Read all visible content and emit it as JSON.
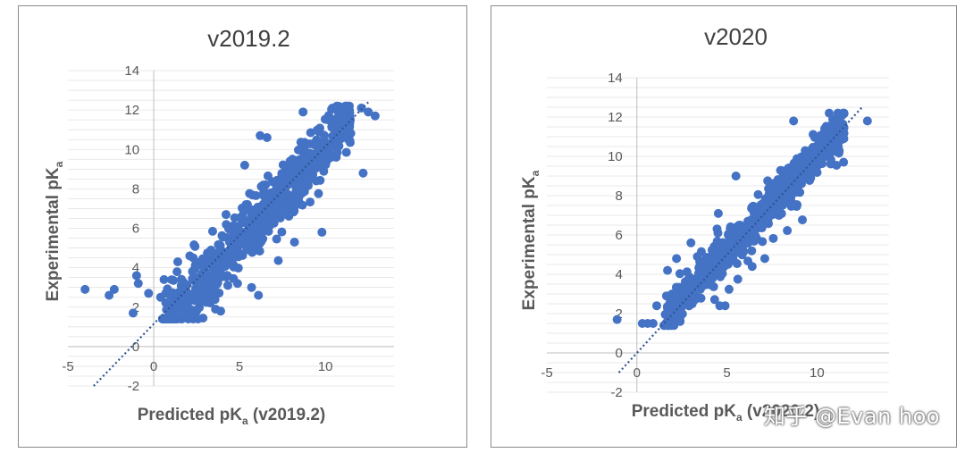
{
  "watermark": "知乎 @Evan hoo",
  "chart_data": [
    {
      "type": "scatter",
      "title": "v2019.2",
      "ylabel": "Experimental pK",
      "ylabel_sub": "a",
      "xlabel": "Predicted pK",
      "xlabel_sub": "a",
      "xlabel_suffix": " (v2019.2)",
      "xlim": [
        -5,
        14
      ],
      "ylim": [
        -2,
        14
      ],
      "x_ticks": [
        -5,
        0,
        5,
        10
      ],
      "y_ticks": [
        -2,
        0,
        2,
        4,
        6,
        8,
        10,
        12,
        14
      ],
      "minor_grid_step": 0.5,
      "trendline": {
        "x": [
          -3.5,
          12.5
        ],
        "y": [
          -2,
          12.4
        ]
      },
      "marker_color": "#4472c4",
      "cloud": {
        "seed": 7,
        "n": 700,
        "x_range": [
          0.5,
          11.5
        ],
        "slope": 0.96,
        "intercept": 0.5,
        "sd_core": 0.7,
        "sd_tail": 1.4
      },
      "points": [
        [
          -4,
          2.9
        ],
        [
          -2.6,
          2.6
        ],
        [
          -2.3,
          2.9
        ],
        [
          -1.2,
          1.7
        ],
        [
          -1.0,
          3.6
        ],
        [
          -0.9,
          3.2
        ],
        [
          -0.3,
          2.7
        ],
        [
          0.4,
          2.5
        ],
        [
          0.7,
          2.7
        ],
        [
          1.1,
          2.6
        ],
        [
          1.5,
          2.4
        ],
        [
          1.6,
          3.1
        ],
        [
          0.6,
          3.4
        ],
        [
          0.9,
          1.8
        ],
        [
          1.4,
          4.3
        ],
        [
          2.1,
          4.6
        ],
        [
          2.3,
          4.5
        ],
        [
          5.3,
          9.2
        ],
        [
          6.2,
          10.7
        ],
        [
          6.6,
          10.6
        ],
        [
          8.7,
          11.9
        ],
        [
          11.0,
          12.1
        ],
        [
          11.4,
          12.0
        ],
        [
          12.1,
          12.1
        ],
        [
          12.5,
          11.9
        ],
        [
          12.9,
          11.7
        ],
        [
          12.2,
          8.8
        ],
        [
          9.8,
          5.8
        ],
        [
          8.2,
          5.3
        ],
        [
          6.1,
          2.6
        ],
        [
          5.7,
          3.0
        ],
        [
          3.6,
          1.9
        ],
        [
          3.9,
          1.8
        ],
        [
          2.5,
          1.8
        ]
      ]
    },
    {
      "type": "scatter",
      "title": "v2020",
      "ylabel": "Experimental pK",
      "ylabel_sub": "a",
      "xlabel": "Predicted pK",
      "xlabel_sub": "a",
      "xlabel_suffix": " (v2020.2)",
      "xlim": [
        -5,
        14
      ],
      "ylim": [
        -2,
        14
      ],
      "x_ticks": [
        -5,
        0,
        5,
        10
      ],
      "y_ticks": [
        -2,
        0,
        2,
        4,
        6,
        8,
        10,
        12,
        14
      ],
      "minor_grid_step": 0.5,
      "trendline": {
        "x": [
          -1.0,
          12.5
        ],
        "y": [
          -1.0,
          12.5
        ]
      },
      "marker_color": "#4472c4",
      "cloud": {
        "seed": 11,
        "n": 700,
        "x_range": [
          1.5,
          11.5
        ],
        "slope": 0.98,
        "intercept": 0.3,
        "sd_core": 0.45,
        "sd_tail": 0.9
      },
      "points": [
        [
          -1.1,
          1.7
        ],
        [
          0.3,
          1.5
        ],
        [
          0.6,
          1.5
        ],
        [
          0.9,
          1.5
        ],
        [
          1.1,
          2.4
        ],
        [
          1.7,
          4.2
        ],
        [
          2.2,
          4.8
        ],
        [
          3.0,
          5.6
        ],
        [
          4.5,
          6.1
        ],
        [
          5.5,
          9.0
        ],
        [
          8.7,
          11.8
        ],
        [
          11.3,
          12.0
        ],
        [
          11.5,
          12.2
        ],
        [
          12.8,
          11.8
        ],
        [
          7.1,
          4.8
        ],
        [
          6.4,
          4.4
        ],
        [
          4.6,
          2.4
        ],
        [
          4.9,
          2.4
        ],
        [
          2.4,
          1.6
        ]
      ]
    }
  ]
}
